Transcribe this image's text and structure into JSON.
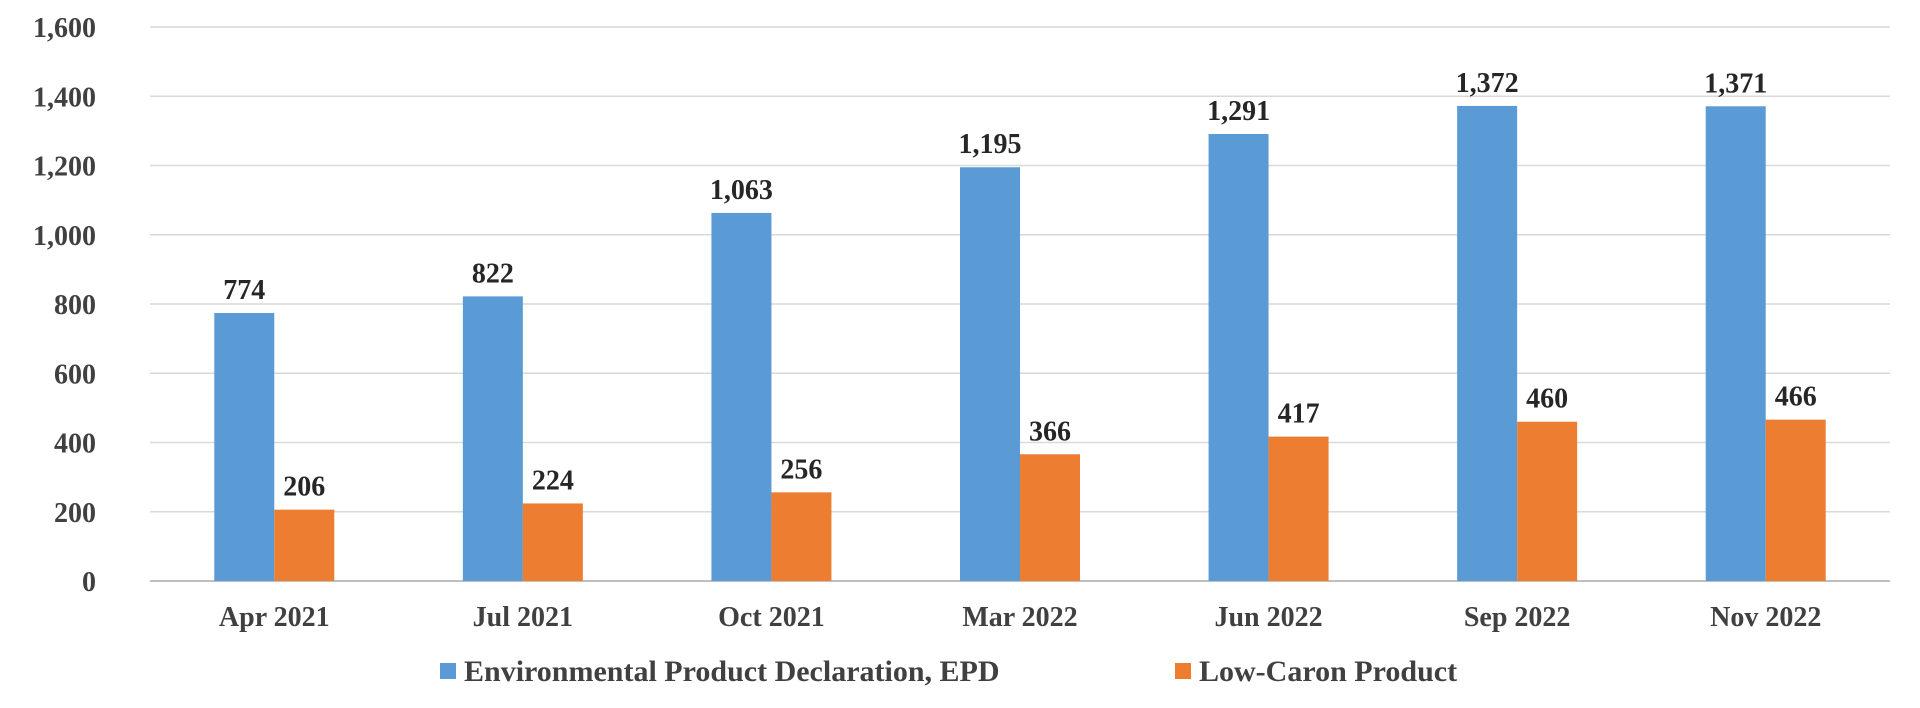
{
  "chart_data": {
    "type": "bar",
    "title": "",
    "xlabel": "",
    "ylabel": "",
    "categories": [
      "Apr 2021",
      "Jul 2021",
      "Oct 2021",
      "Mar 2022",
      "Jun 2022",
      "Sep 2022",
      "Nov 2022"
    ],
    "series": [
      {
        "name": "Environmental Product Declaration, EPD",
        "color": "#5b9bd5",
        "values": [
          774,
          822,
          1063,
          1195,
          1291,
          1372,
          1371
        ],
        "value_labels": [
          "774",
          "822",
          "1,063",
          "1,195",
          "1,291",
          "1,372",
          "1,371"
        ]
      },
      {
        "name": "Low-Caron Product",
        "color": "#ed7d31",
        "values": [
          206,
          224,
          256,
          366,
          417,
          460,
          466
        ],
        "value_labels": [
          "206",
          "224",
          "256",
          "366",
          "417",
          "460",
          "466"
        ]
      }
    ],
    "ylim": [
      0,
      1600
    ],
    "yticks": [
      0,
      200,
      400,
      600,
      800,
      1000,
      1200,
      1400,
      1600
    ],
    "ytick_labels": [
      "0",
      "200",
      "400",
      "600",
      "800",
      "1,000",
      "1,200",
      "1,400",
      "1,600"
    ],
    "grid": true,
    "legend_position": "bottom"
  }
}
